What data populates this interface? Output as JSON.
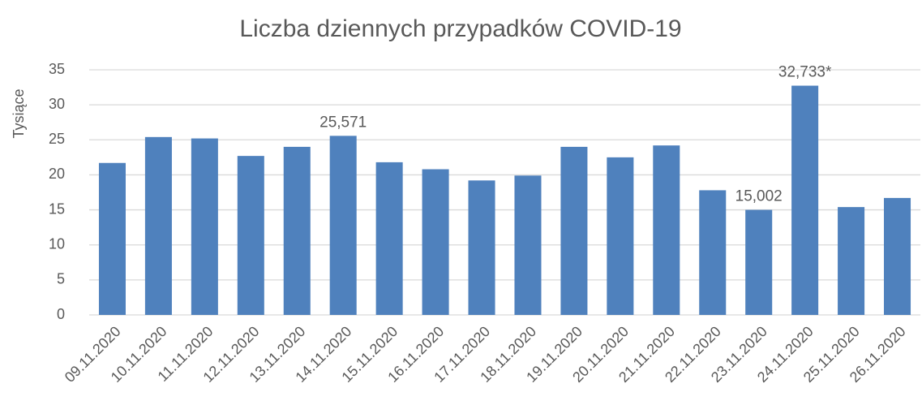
{
  "chart_data": {
    "type": "bar",
    "title": "Liczba dziennych przypadków COVID-19",
    "y_label": "Tysiące",
    "categories": [
      "09.11.2020",
      "10.11.2020",
      "11.11.2020",
      "12.11.2020",
      "13.11.2020",
      "14.11.2020",
      "15.11.2020",
      "16.11.2020",
      "17.11.2020",
      "18.11.2020",
      "19.11.2020",
      "20.11.2020",
      "21.11.2020",
      "22.11.2020",
      "23.11.2020",
      "24.11.2020",
      "25.11.2020",
      "26.11.2020"
    ],
    "values": [
      21.7,
      25.4,
      25.2,
      22.7,
      24.0,
      25.571,
      21.8,
      20.8,
      19.2,
      19.9,
      24.0,
      22.5,
      24.2,
      17.8,
      15.002,
      32.733,
      15.4,
      16.7
    ],
    "value_labels": [
      null,
      null,
      null,
      null,
      null,
      "25,571",
      null,
      null,
      null,
      null,
      null,
      null,
      null,
      null,
      "15,002",
      "32,733*",
      null,
      null
    ],
    "color": "#4f81bd",
    "ylim": [
      0,
      35
    ],
    "yticks": [
      0,
      5,
      10,
      15,
      20,
      25,
      30,
      35
    ],
    "grid": true
  }
}
